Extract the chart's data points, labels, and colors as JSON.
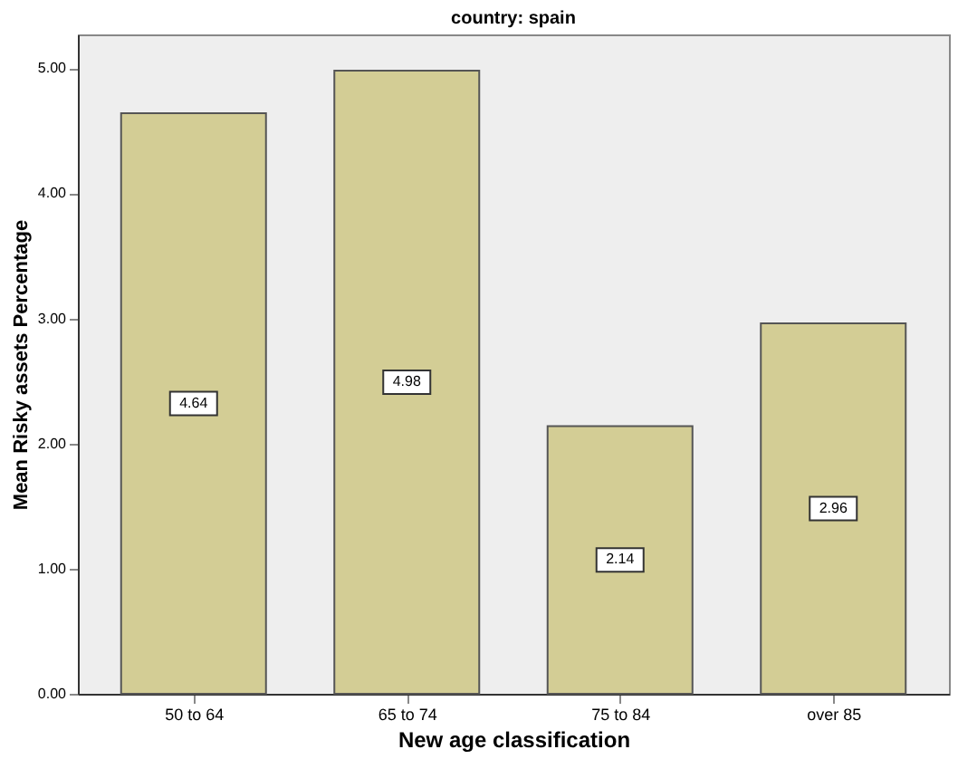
{
  "chart_data": {
    "type": "bar",
    "title": "country: spain",
    "xlabel": "New age classification",
    "ylabel": "Mean Risky assets Percentage",
    "categories": [
      "50 to 64",
      "65 to 74",
      "75 to 84",
      "over 85"
    ],
    "values": [
      4.64,
      4.98,
      2.14,
      2.96
    ],
    "color": "#d3cd95",
    "data_labels": true,
    "ylim": [
      0,
      5.27
    ],
    "yticks": [
      {
        "value": 0,
        "label": "0.00"
      },
      {
        "value": 1,
        "label": "1.00"
      },
      {
        "value": 2,
        "label": "2.00"
      },
      {
        "value": 3,
        "label": "3.00"
      },
      {
        "value": 4,
        "label": "4.00"
      },
      {
        "value": 5,
        "label": "5.00"
      }
    ],
    "grid": false
  }
}
